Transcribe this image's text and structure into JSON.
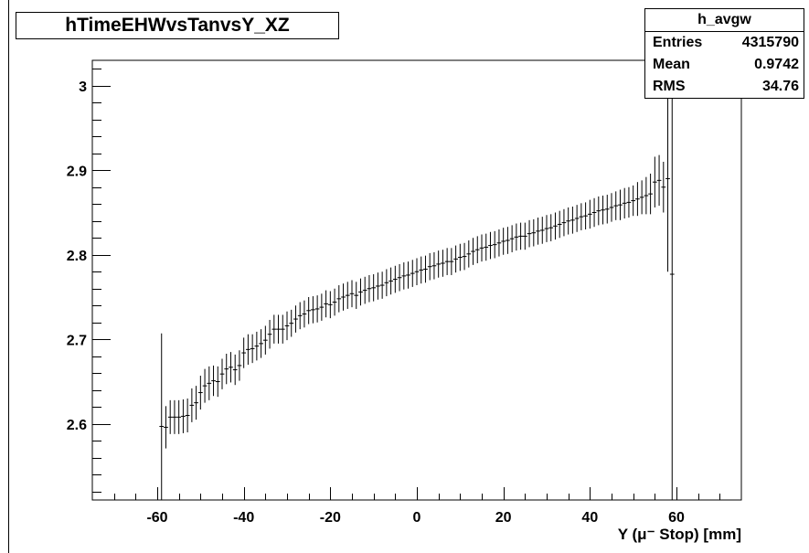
{
  "title": "hTimeEHWvsTanvsY_XZ",
  "stats": {
    "name": "h_avgw",
    "rows": [
      {
        "label": "Entries",
        "value": "4315790"
      },
      {
        "label": "Mean",
        "value": "0.9742"
      },
      {
        "label": "RMS",
        "value": "34.76"
      }
    ]
  },
  "chart_data": {
    "type": "scatter",
    "title": "hTimeEHWvsTanvsY_XZ",
    "xlabel": "Y (μ⁻ Stop) [mm]",
    "ylabel": "",
    "xlim": [
      -75,
      75
    ],
    "ylim": [
      2.51,
      3.03
    ],
    "xticks": [
      -60,
      -40,
      -20,
      0,
      20,
      40,
      60
    ],
    "yticks": [
      2.6,
      2.7,
      2.8,
      2.9,
      3.0
    ],
    "xtick_labels": [
      "-60",
      "-40",
      "-20",
      "0",
      "20",
      "40",
      "60"
    ],
    "ytick_labels": [
      "2.6",
      "2.7",
      "2.8",
      "2.9",
      "3"
    ],
    "grid": false,
    "series": [
      {
        "style": "profile-markers-with-error-bars",
        "x": [
          -59,
          -58,
          -57,
          -56,
          -55,
          -54,
          -53,
          -52,
          -51,
          -50,
          -49,
          -48,
          -47,
          -46,
          -45,
          -44,
          -43,
          -42,
          -41,
          -40,
          -39,
          -38,
          -37,
          -36,
          -35,
          -34,
          -33,
          -32,
          -31,
          -30,
          -29,
          -28,
          -27,
          -26,
          -25,
          -24,
          -23,
          -22,
          -21,
          -20,
          -19,
          -18,
          -17,
          -16,
          -15,
          -14,
          -13,
          -12,
          -11,
          -10,
          -9,
          -8,
          -7,
          -6,
          -5,
          -4,
          -3,
          -2,
          -1,
          0,
          1,
          2,
          3,
          4,
          5,
          6,
          7,
          8,
          9,
          10,
          11,
          12,
          13,
          14,
          15,
          16,
          17,
          18,
          19,
          20,
          21,
          22,
          23,
          24,
          25,
          26,
          27,
          28,
          29,
          30,
          31,
          32,
          33,
          34,
          35,
          36,
          37,
          38,
          39,
          40,
          41,
          42,
          43,
          44,
          45,
          46,
          47,
          48,
          49,
          50,
          51,
          52,
          53,
          54,
          55,
          56,
          57,
          58,
          59
        ],
        "y": [
          2.597,
          2.596,
          2.608,
          2.608,
          2.608,
          2.609,
          2.61,
          2.622,
          2.625,
          2.637,
          2.645,
          2.648,
          2.651,
          2.65,
          2.659,
          2.665,
          2.667,
          2.664,
          2.669,
          2.684,
          2.688,
          2.689,
          2.692,
          2.695,
          2.699,
          2.706,
          2.712,
          2.712,
          2.712,
          2.716,
          2.719,
          2.724,
          2.728,
          2.73,
          2.734,
          2.735,
          2.736,
          2.738,
          2.742,
          2.741,
          2.744,
          2.748,
          2.75,
          2.752,
          2.754,
          2.752,
          2.756,
          2.758,
          2.76,
          2.761,
          2.763,
          2.764,
          2.767,
          2.769,
          2.771,
          2.773,
          2.775,
          2.776,
          2.778,
          2.78,
          2.782,
          2.783,
          2.786,
          2.787,
          2.789,
          2.79,
          2.792,
          2.792,
          2.795,
          2.797,
          2.798,
          2.801,
          2.804,
          2.806,
          2.808,
          2.809,
          2.811,
          2.812,
          2.814,
          2.816,
          2.817,
          2.819,
          2.821,
          2.822,
          2.822,
          2.825,
          2.826,
          2.828,
          2.829,
          2.831,
          2.832,
          2.834,
          2.836,
          2.838,
          2.84,
          2.841,
          2.843,
          2.845,
          2.846,
          2.848,
          2.85,
          2.852,
          2.853,
          2.854,
          2.856,
          2.858,
          2.859,
          2.861,
          2.862,
          2.864,
          2.866,
          2.868,
          2.87,
          2.872,
          2.886,
          2.888,
          2.88,
          2.89,
          2.777
        ],
        "err": [
          0.11,
          0.025,
          0.02,
          0.02,
          0.02,
          0.02,
          0.02,
          0.02,
          0.02,
          0.02,
          0.02,
          0.02,
          0.018,
          0.018,
          0.018,
          0.018,
          0.018,
          0.018,
          0.018,
          0.018,
          0.018,
          0.017,
          0.017,
          0.017,
          0.017,
          0.017,
          0.017,
          0.017,
          0.017,
          0.017,
          0.016,
          0.016,
          0.016,
          0.016,
          0.016,
          0.016,
          0.016,
          0.016,
          0.016,
          0.016,
          0.016,
          0.016,
          0.016,
          0.016,
          0.016,
          0.016,
          0.016,
          0.016,
          0.016,
          0.016,
          0.016,
          0.016,
          0.016,
          0.016,
          0.016,
          0.016,
          0.016,
          0.016,
          0.016,
          0.016,
          0.016,
          0.016,
          0.016,
          0.016,
          0.016,
          0.016,
          0.016,
          0.016,
          0.016,
          0.016,
          0.016,
          0.016,
          0.016,
          0.016,
          0.016,
          0.016,
          0.016,
          0.016,
          0.016,
          0.016,
          0.016,
          0.016,
          0.016,
          0.016,
          0.016,
          0.016,
          0.016,
          0.016,
          0.016,
          0.016,
          0.016,
          0.016,
          0.016,
          0.016,
          0.016,
          0.016,
          0.016,
          0.016,
          0.016,
          0.017,
          0.017,
          0.017,
          0.017,
          0.017,
          0.017,
          0.017,
          0.018,
          0.018,
          0.018,
          0.018,
          0.02,
          0.02,
          0.022,
          0.024,
          0.03,
          0.03,
          0.03,
          0.11,
          0.3
        ]
      }
    ]
  }
}
